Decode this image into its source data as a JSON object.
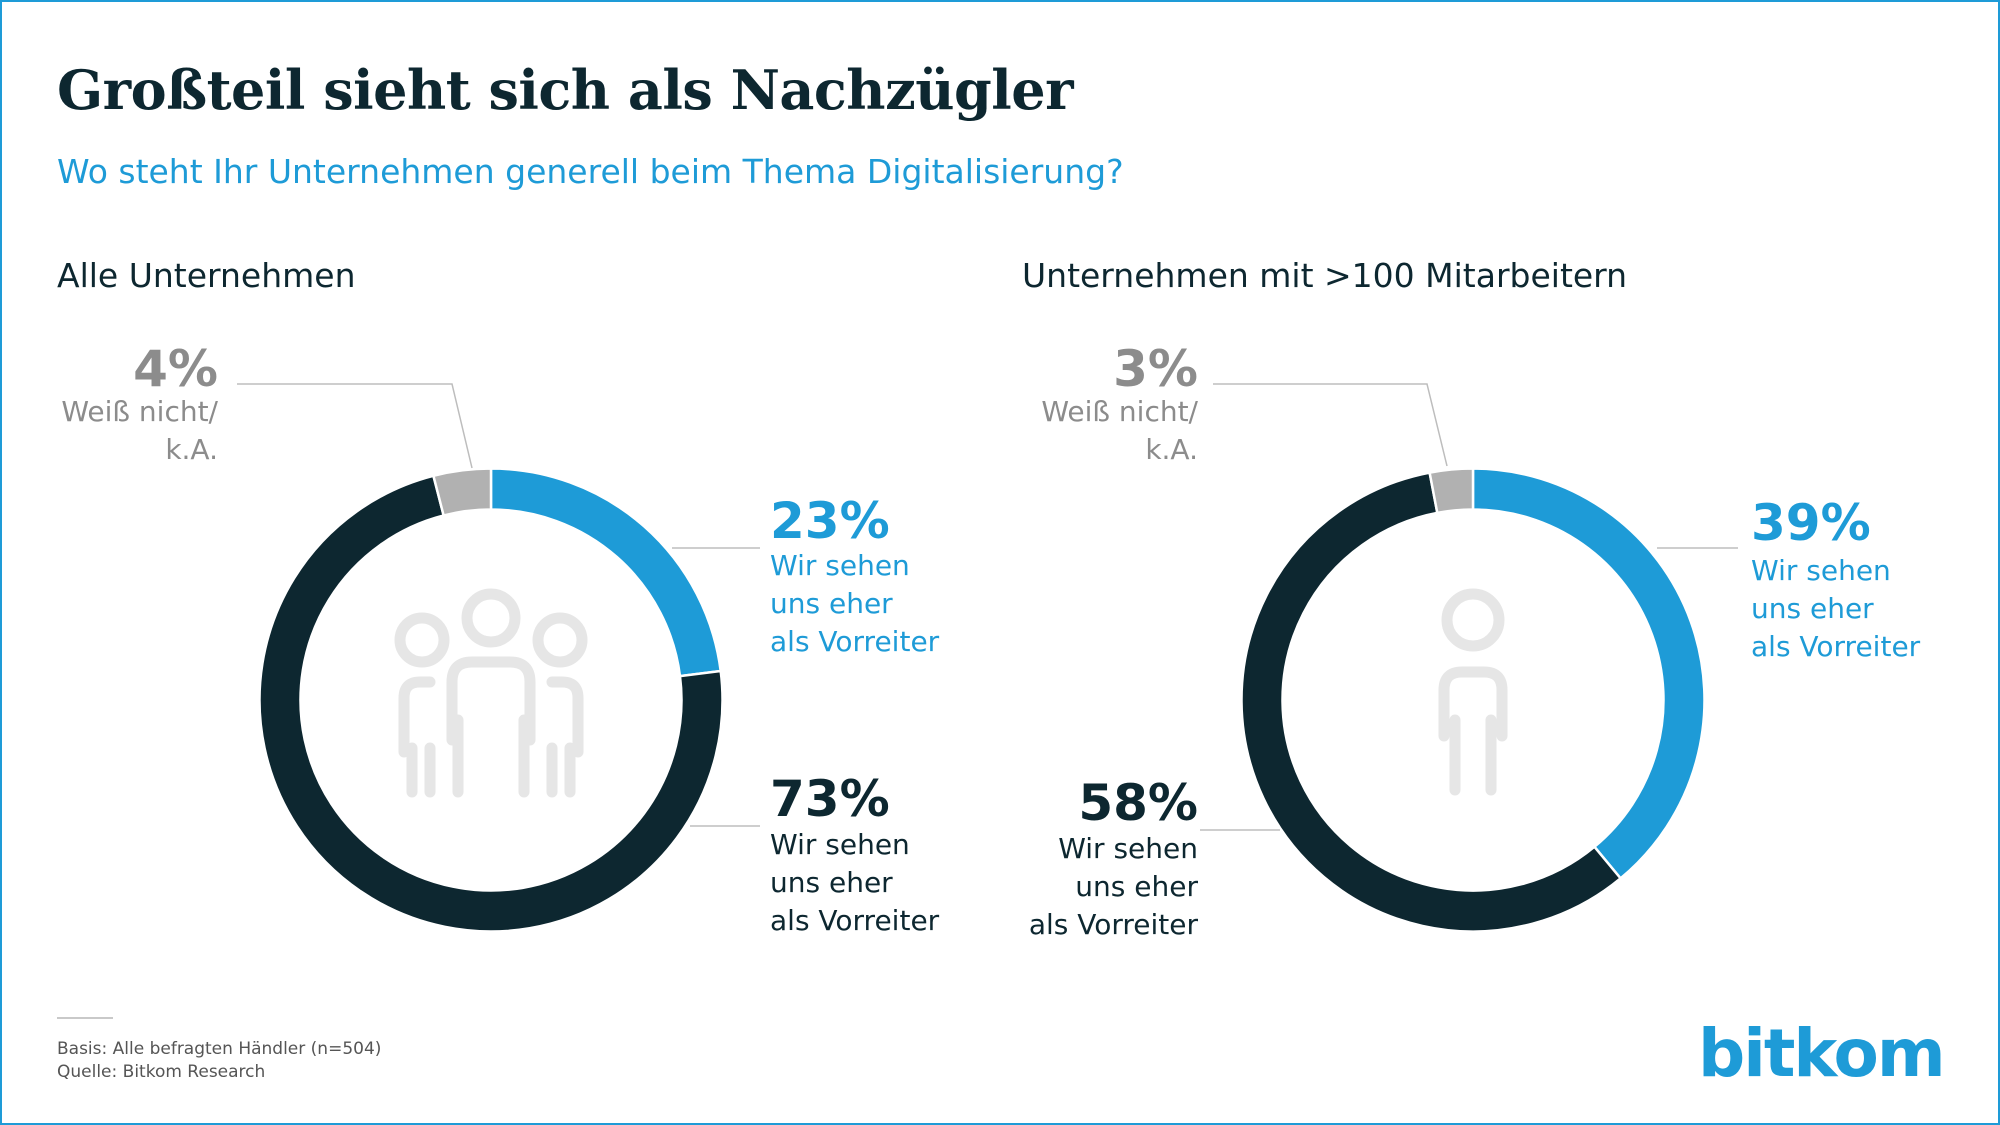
{
  "title": "Großteil sieht sich als Nachzügler",
  "subtitle": "Wo steht Ihr Unternehmen generell beim Thema Digitalisierung?",
  "colors": {
    "blue": "#1e9bd7",
    "dark": "#0d2730",
    "gray": "#b1b1b1",
    "icon": "#e6e6e6"
  },
  "chart_data": [
    {
      "type": "pie",
      "title": "Alle Unternehmen",
      "icon": "group-icon",
      "slices": [
        {
          "pct_label": "23%",
          "value": 23,
          "label_lines": [
            "Wir sehen",
            "uns eher",
            "als Vorreiter"
          ]
        },
        {
          "pct_label": "73%",
          "value": 73,
          "label_lines": [
            "Wir sehen",
            "uns eher",
            "als Vorreiter"
          ]
        },
        {
          "pct_label": "4%",
          "value": 4,
          "label_lines": [
            "Weiß nicht/",
            "k.A."
          ]
        }
      ]
    },
    {
      "type": "pie",
      "title": "Unternehmen mit >100 Mitarbeitern",
      "icon": "person-icon",
      "slices": [
        {
          "pct_label": "39%",
          "value": 39,
          "label_lines": [
            "Wir sehen",
            "uns eher",
            "als Vorreiter"
          ]
        },
        {
          "pct_label": "58%",
          "value": 58,
          "label_lines": [
            "Wir sehen",
            "uns eher",
            "als Vorreiter"
          ]
        },
        {
          "pct_label": "3%",
          "value": 3,
          "label_lines": [
            "Weiß nicht/",
            "k.A."
          ]
        }
      ]
    }
  ],
  "footer": {
    "basis": "Basis: Alle befragten Händler (n=504)",
    "source": "Quelle: Bitkom Research"
  },
  "logo": "bitkom"
}
